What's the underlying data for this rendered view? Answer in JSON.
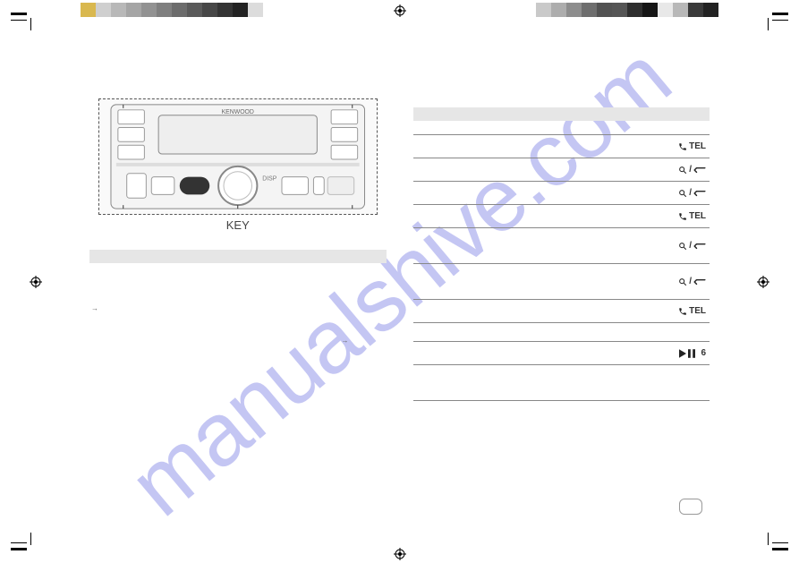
{
  "watermark": "manualshive.com",
  "brand": "KENWOOD",
  "key_label": "KEY",
  "calibration": {
    "left_colors": [
      "#d9b84f",
      "#cfcfcf",
      "#b8b8b8",
      "#a5a5a5",
      "#929292",
      "#7f7f7f",
      "#6c6c6c",
      "#5a5a5a",
      "#474747",
      "#343434",
      "#222222",
      "#dcdcdc"
    ],
    "right_colors": [
      "#c9c9c9",
      "#adadad",
      "#8d8d8d",
      "#6e6e6e",
      "#525252",
      "#555555",
      "#2e2e2e",
      "#151515",
      "#e8e8e8",
      "#b8b8b8",
      "#3a3a3a",
      "#222222"
    ]
  },
  "left_col": {
    "para1": "",
    "arrow1": "→",
    "para2": "",
    "arrow2": "→"
  },
  "right_col": {
    "rows": [
      {
        "type": "icon_tel",
        "label": "TEL"
      },
      {
        "type": "icon_search",
        "label": ""
      },
      {
        "type": "icon_search",
        "label": ""
      },
      {
        "type": "icon_tel",
        "label": "TEL"
      },
      {
        "type": "icon_search",
        "label": "",
        "tall": true
      },
      {
        "type": "icon_search",
        "label": "",
        "tall": true
      },
      {
        "type": "icon_tel",
        "label": "TEL"
      }
    ],
    "play_label": "6"
  }
}
